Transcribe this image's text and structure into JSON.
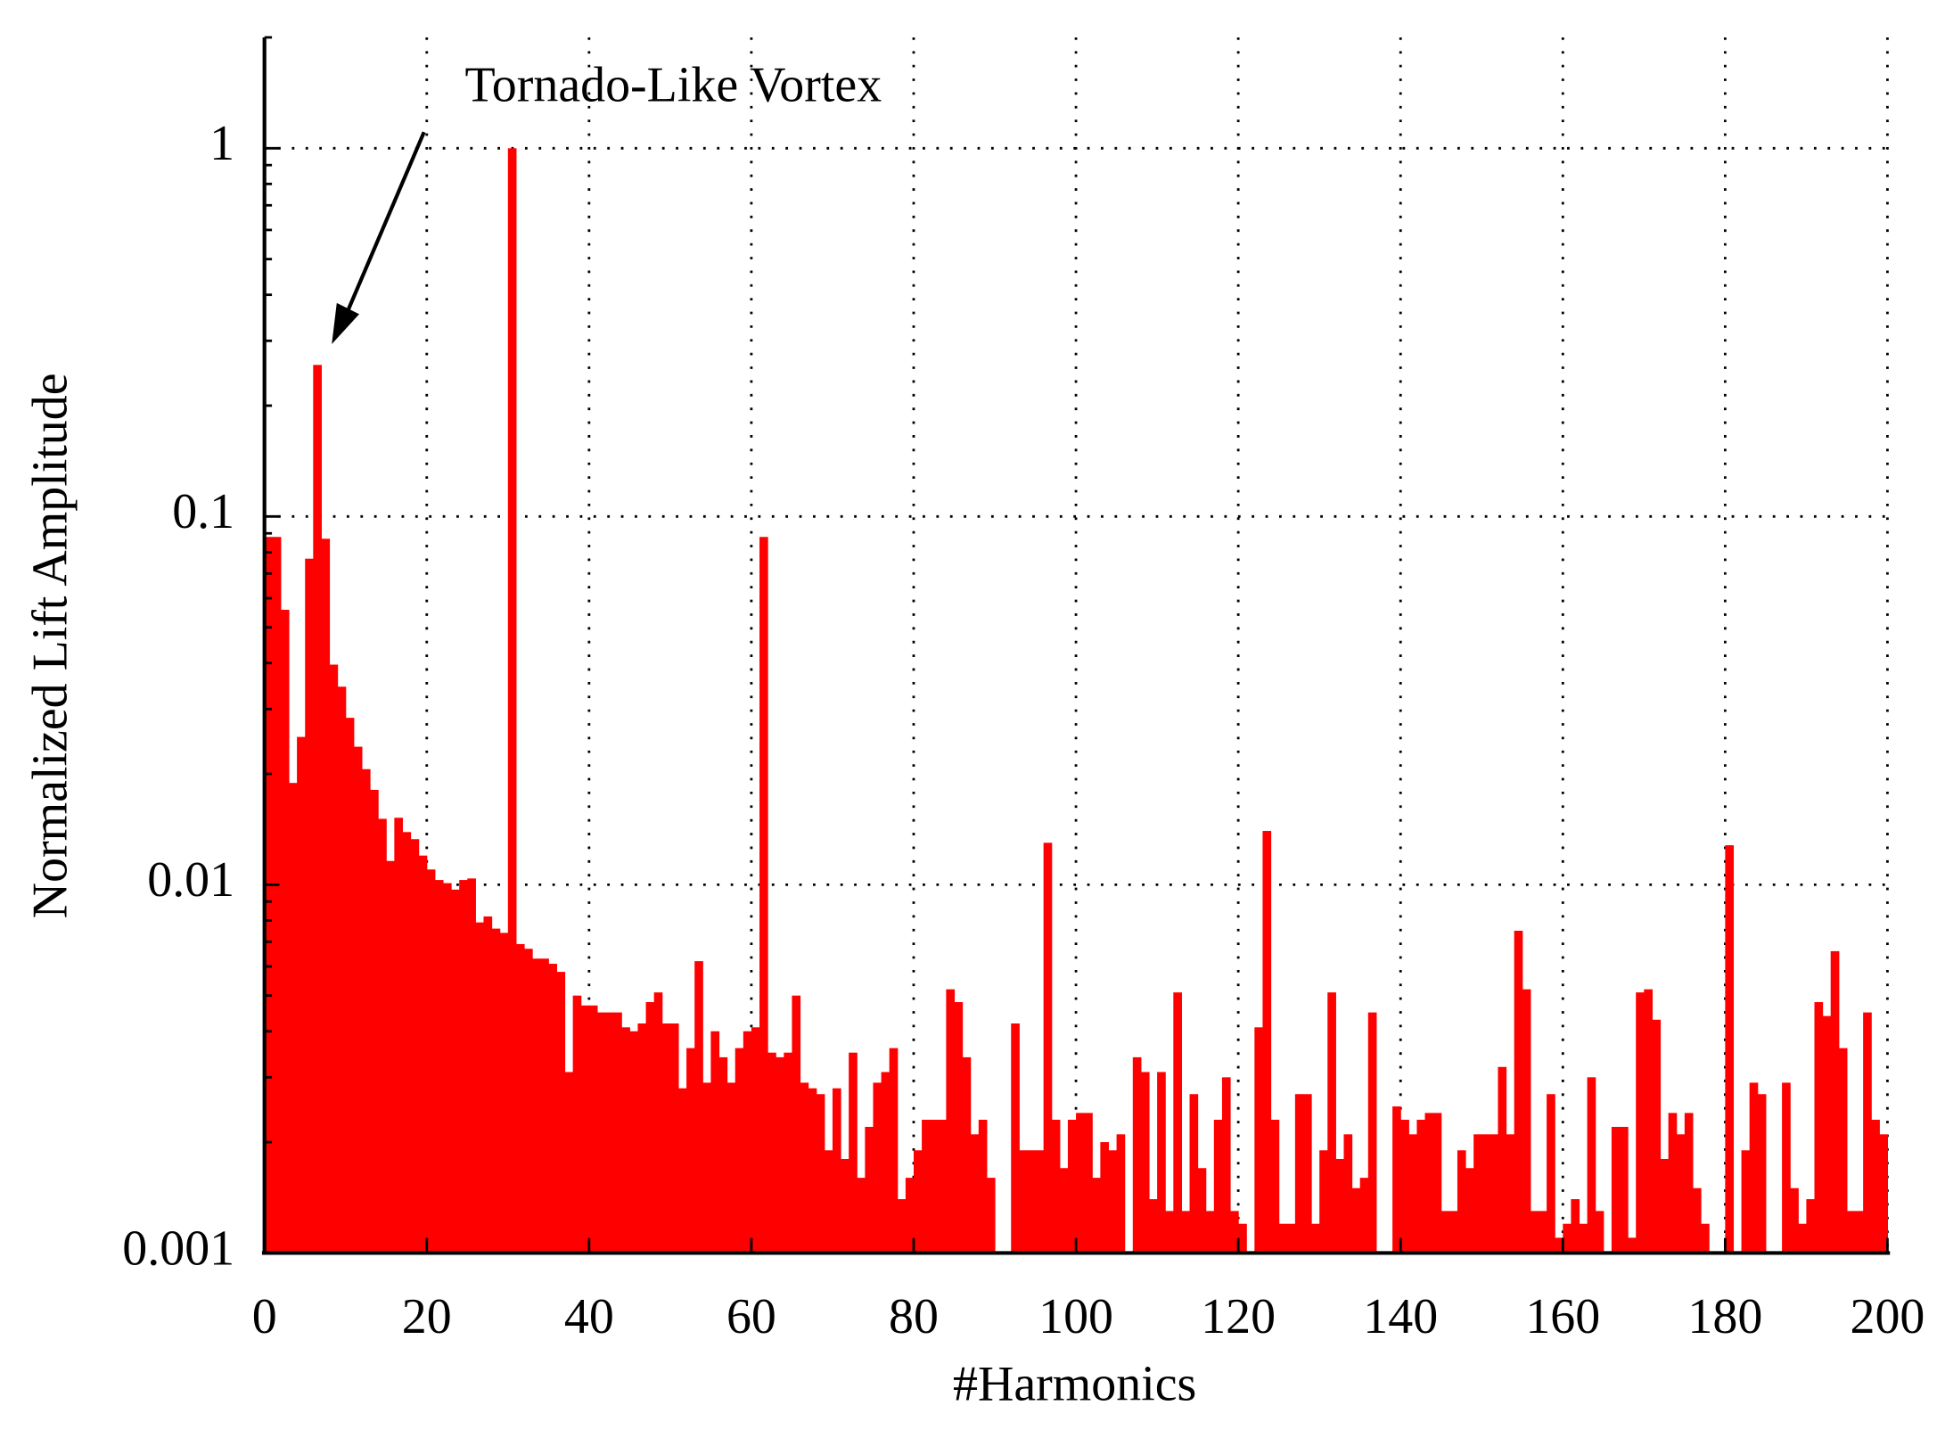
{
  "chart_data": {
    "type": "bar",
    "log_y": true,
    "grid": true,
    "color": "#ff0000",
    "annotation": "Tornado-Like Vortex",
    "xlabel": "#Harmonics",
    "ylabel": "Normalized Lift Amplitude",
    "xlim": [
      0,
      200
    ],
    "xticks": [
      0,
      20,
      40,
      60,
      80,
      100,
      120,
      140,
      160,
      180,
      200
    ],
    "ylim": [
      0.001,
      2
    ],
    "yticks": [
      0.001,
      0.01,
      0.1,
      1
    ],
    "x": [
      0,
      1,
      2,
      3,
      4,
      5,
      6,
      7,
      8,
      9,
      10,
      11,
      12,
      13,
      14,
      15,
      16,
      17,
      18,
      19,
      20,
      21,
      22,
      23,
      24,
      25,
      26,
      27,
      28,
      29,
      30,
      31,
      32,
      33,
      34,
      35,
      36,
      37,
      38,
      39,
      40,
      41,
      42,
      43,
      44,
      45,
      46,
      47,
      48,
      49,
      50,
      51,
      52,
      53,
      54,
      55,
      56,
      57,
      58,
      59,
      60,
      61,
      62,
      63,
      64,
      65,
      66,
      67,
      68,
      69,
      70,
      71,
      72,
      73,
      74,
      75,
      76,
      77,
      78,
      79,
      80,
      81,
      82,
      83,
      84,
      85,
      86,
      87,
      88,
      89,
      90,
      91,
      92,
      93,
      94,
      95,
      96,
      97,
      98,
      99,
      100,
      101,
      102,
      103,
      104,
      105,
      106,
      107,
      108,
      109,
      110,
      111,
      112,
      113,
      114,
      115,
      116,
      117,
      118,
      119,
      120,
      121,
      122,
      123,
      124,
      125,
      126,
      127,
      128,
      129,
      130,
      131,
      132,
      133,
      134,
      135,
      136,
      137,
      138,
      139,
      140,
      141,
      142,
      143,
      144,
      145,
      146,
      147,
      148,
      149,
      150,
      151,
      152,
      153,
      154,
      155,
      156,
      157,
      158,
      159,
      160,
      161,
      162,
      163,
      164,
      165,
      166,
      167,
      168,
      169,
      170,
      171,
      172,
      173,
      174,
      175,
      176,
      177,
      178,
      179,
      180,
      181,
      182,
      183,
      184,
      185,
      186,
      187,
      188,
      189,
      190,
      191,
      192,
      193,
      194,
      195,
      196,
      197,
      198,
      199
    ],
    "values": [
      0.088,
      0.088,
      0.0558,
      0.0189,
      0.0252,
      0.0768,
      0.258,
      0.087,
      0.0396,
      0.0345,
      0.0284,
      0.0237,
      0.0206,
      0.0181,
      0.0151,
      0.0116,
      0.0152,
      0.0139,
      0.0133,
      0.012,
      0.011,
      0.0103,
      0.0101,
      0.0097,
      0.0103,
      0.0104,
      0.0079,
      0.0082,
      0.0076,
      0.0074,
      1,
      0.0069,
      0.0067,
      0.0063,
      0.0063,
      0.0061,
      0.0058,
      0.0031,
      0.005,
      0.0047,
      0.0047,
      0.0045,
      0.0045,
      0.0045,
      0.0041,
      0.004,
      0.0042,
      0.0048,
      0.0051,
      0.0042,
      0.0042,
      0.0028,
      0.0036,
      0.0062,
      0.0029,
      0.004,
      0.0034,
      0.0029,
      0.0036,
      0.004,
      0.0041,
      0.088,
      0.0035,
      0.0034,
      0.0035,
      0.005,
      0.0029,
      0.0028,
      0.0027,
      0.0019,
      0.0028,
      0.0018,
      0.0035,
      0.0016,
      0.0022,
      0.0029,
      0.0031,
      0.0036,
      0.0014,
      0.0016,
      0.0019,
      0.0023,
      0.0023,
      0.0023,
      0.0052,
      0.0048,
      0.0034,
      0.0021,
      0.0023,
      0.0016,
      0.001,
      0.001,
      0.0042,
      0.0019,
      0.0019,
      0.0019,
      0.013,
      0.0023,
      0.0017,
      0.0023,
      0.0024,
      0.0024,
      0.0016,
      0.002,
      0.0019,
      0.0021,
      0.001,
      0.0034,
      0.0031,
      0.0014,
      0.0031,
      0.0013,
      0.0051,
      0.0013,
      0.0027,
      0.0017,
      0.0013,
      0.0023,
      0.003,
      0.0013,
      0.0012,
      0.001,
      0.0041,
      0.014,
      0.0023,
      0.0012,
      0.0012,
      0.0027,
      0.0027,
      0.0012,
      0.0019,
      0.0051,
      0.0018,
      0.0021,
      0.0015,
      0.0016,
      0.0045,
      0.001,
      0.001,
      0.0025,
      0.0023,
      0.0021,
      0.0023,
      0.0024,
      0.0024,
      0.0013,
      0.0013,
      0.0019,
      0.0017,
      0.0021,
      0.0021,
      0.0021,
      0.0032,
      0.0021,
      0.0075,
      0.0052,
      0.0013,
      0.0013,
      0.0027,
      0.0011,
      0.0012,
      0.0014,
      0.0012,
      0.003,
      0.0013,
      0.001,
      0.0022,
      0.0022,
      0.0011,
      0.0051,
      0.0052,
      0.0043,
      0.0018,
      0.0024,
      0.0021,
      0.0024,
      0.0015,
      0.0012,
      0.001,
      0.001,
      0.0128,
      0.001,
      0.0019,
      0.0029,
      0.0027,
      0.001,
      0.001,
      0.0029,
      0.0015,
      0.0012,
      0.0014,
      0.0048,
      0.0044,
      0.0066,
      0.0036,
      0.0013,
      0.0013,
      0.0045,
      0.0023,
      0.0021
    ]
  }
}
